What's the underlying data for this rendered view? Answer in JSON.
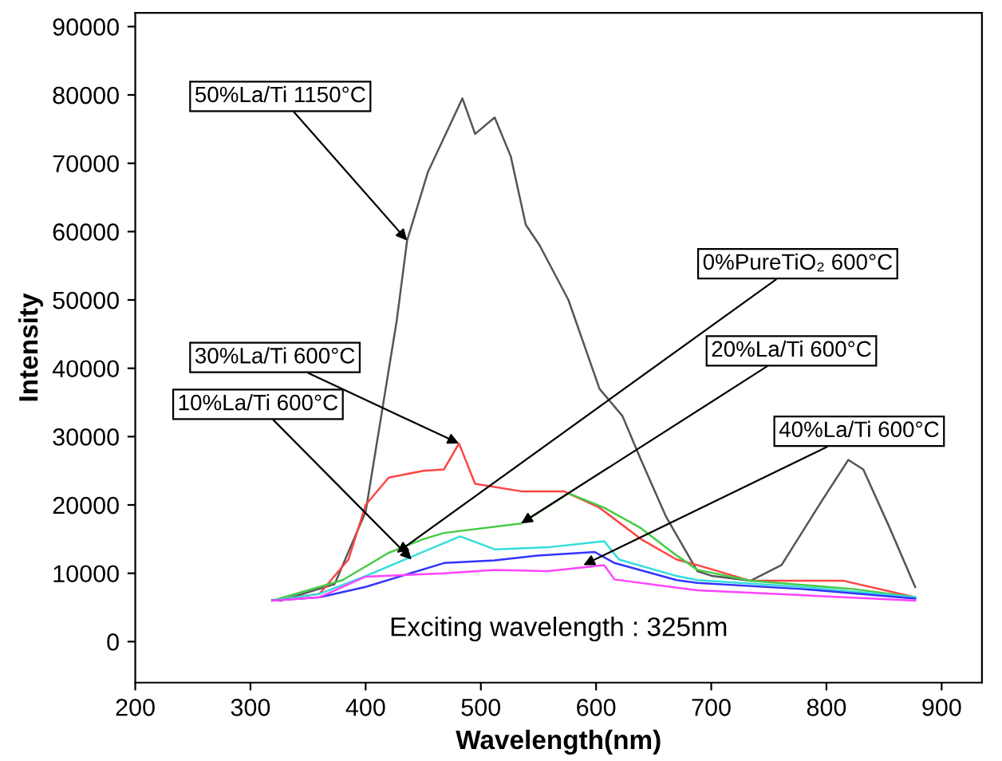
{
  "chart_data": {
    "type": "line",
    "xlabel": "Wavelength(nm)",
    "ylabel": "Intensity",
    "xlim": [
      200,
      935
    ],
    "ylim": [
      -6000,
      92000
    ],
    "xticks": [
      200,
      300,
      400,
      500,
      600,
      700,
      800,
      900
    ],
    "yticks": [
      0,
      10000,
      20000,
      30000,
      40000,
      50000,
      60000,
      70000,
      80000,
      90000
    ],
    "grid": false,
    "legend": false,
    "series": [
      {
        "color": "#555555",
        "x": [
          319,
          326,
          373,
          400,
          427,
          436,
          454,
          484,
          495,
          512,
          526,
          539,
          551,
          576,
          603,
          623,
          639,
          661,
          688,
          701,
          734,
          761,
          796,
          819,
          832,
          855,
          877
        ],
        "values": [
          6100,
          6000,
          8400,
          19000,
          47000,
          58700,
          68700,
          79500,
          74300,
          76700,
          71000,
          61000,
          58000,
          50000,
          37000,
          33000,
          26600,
          18200,
          10300,
          9600,
          8900,
          11200,
          20600,
          26600,
          25200,
          16600,
          8000
        ]
      },
      {
        "color": "#ff4444",
        "x": [
          319,
          360,
          385,
          400,
          420,
          450,
          468,
          481,
          495,
          535,
          572,
          603,
          639,
          670,
          688,
          734,
          815,
          877
        ],
        "values": [
          6000,
          7000,
          12000,
          20000,
          24000,
          25000,
          25200,
          29000,
          23100,
          22000,
          22000,
          19600,
          15000,
          12000,
          11200,
          8900,
          8900,
          6500
        ]
      },
      {
        "color": "#44cc44",
        "x": [
          319,
          380,
          420,
          450,
          468,
          535,
          576,
          607,
          639,
          670,
          688,
          734,
          823,
          877
        ],
        "values": [
          6000,
          9000,
          13000,
          15000,
          15900,
          17300,
          21700,
          19600,
          16600,
          12600,
          10500,
          8900,
          7700,
          6500
        ]
      },
      {
        "color": "#33dddd",
        "x": [
          319,
          360,
          400,
          482,
          512,
          558,
          607,
          620,
          670,
          688,
          778,
          877
        ],
        "values": [
          6000,
          7000,
          9600,
          15400,
          13500,
          13800,
          14700,
          12000,
          9600,
          9000,
          8000,
          6500
        ]
      },
      {
        "color": "#3333ff",
        "x": [
          319,
          360,
          400,
          468,
          512,
          549,
          599,
          616,
          670,
          688,
          778,
          877
        ],
        "values": [
          6000,
          6500,
          8000,
          11500,
          11900,
          12600,
          13100,
          11500,
          9000,
          8600,
          7700,
          6300
        ]
      },
      {
        "color": "#ff44ff",
        "x": [
          319,
          360,
          400,
          468,
          512,
          558,
          607,
          616,
          670,
          688,
          778,
          877
        ],
        "values": [
          6000,
          6500,
          9500,
          10000,
          10500,
          10300,
          11200,
          9100,
          7900,
          7500,
          6800,
          6000
        ]
      }
    ],
    "annotations": [
      {
        "text": "50%La/Ti 1150°C",
        "x": 436,
        "y": 58700
      },
      {
        "text": "30%La/Ti 600°C",
        "x": 481,
        "y": 29000
      },
      {
        "text": "0%PureTiO₂ 600°C",
        "x": 427,
        "y": 13000
      },
      {
        "text": "20%La/Ti 600°C",
        "x": 535,
        "y": 17300
      },
      {
        "text": "10%La/Ti 600°C",
        "x": 440,
        "y": 12000
      },
      {
        "text": "40%La/Ti 600°C",
        "x": 589,
        "y": 11200
      },
      "Exciting wavelength : 325nm"
    ]
  }
}
